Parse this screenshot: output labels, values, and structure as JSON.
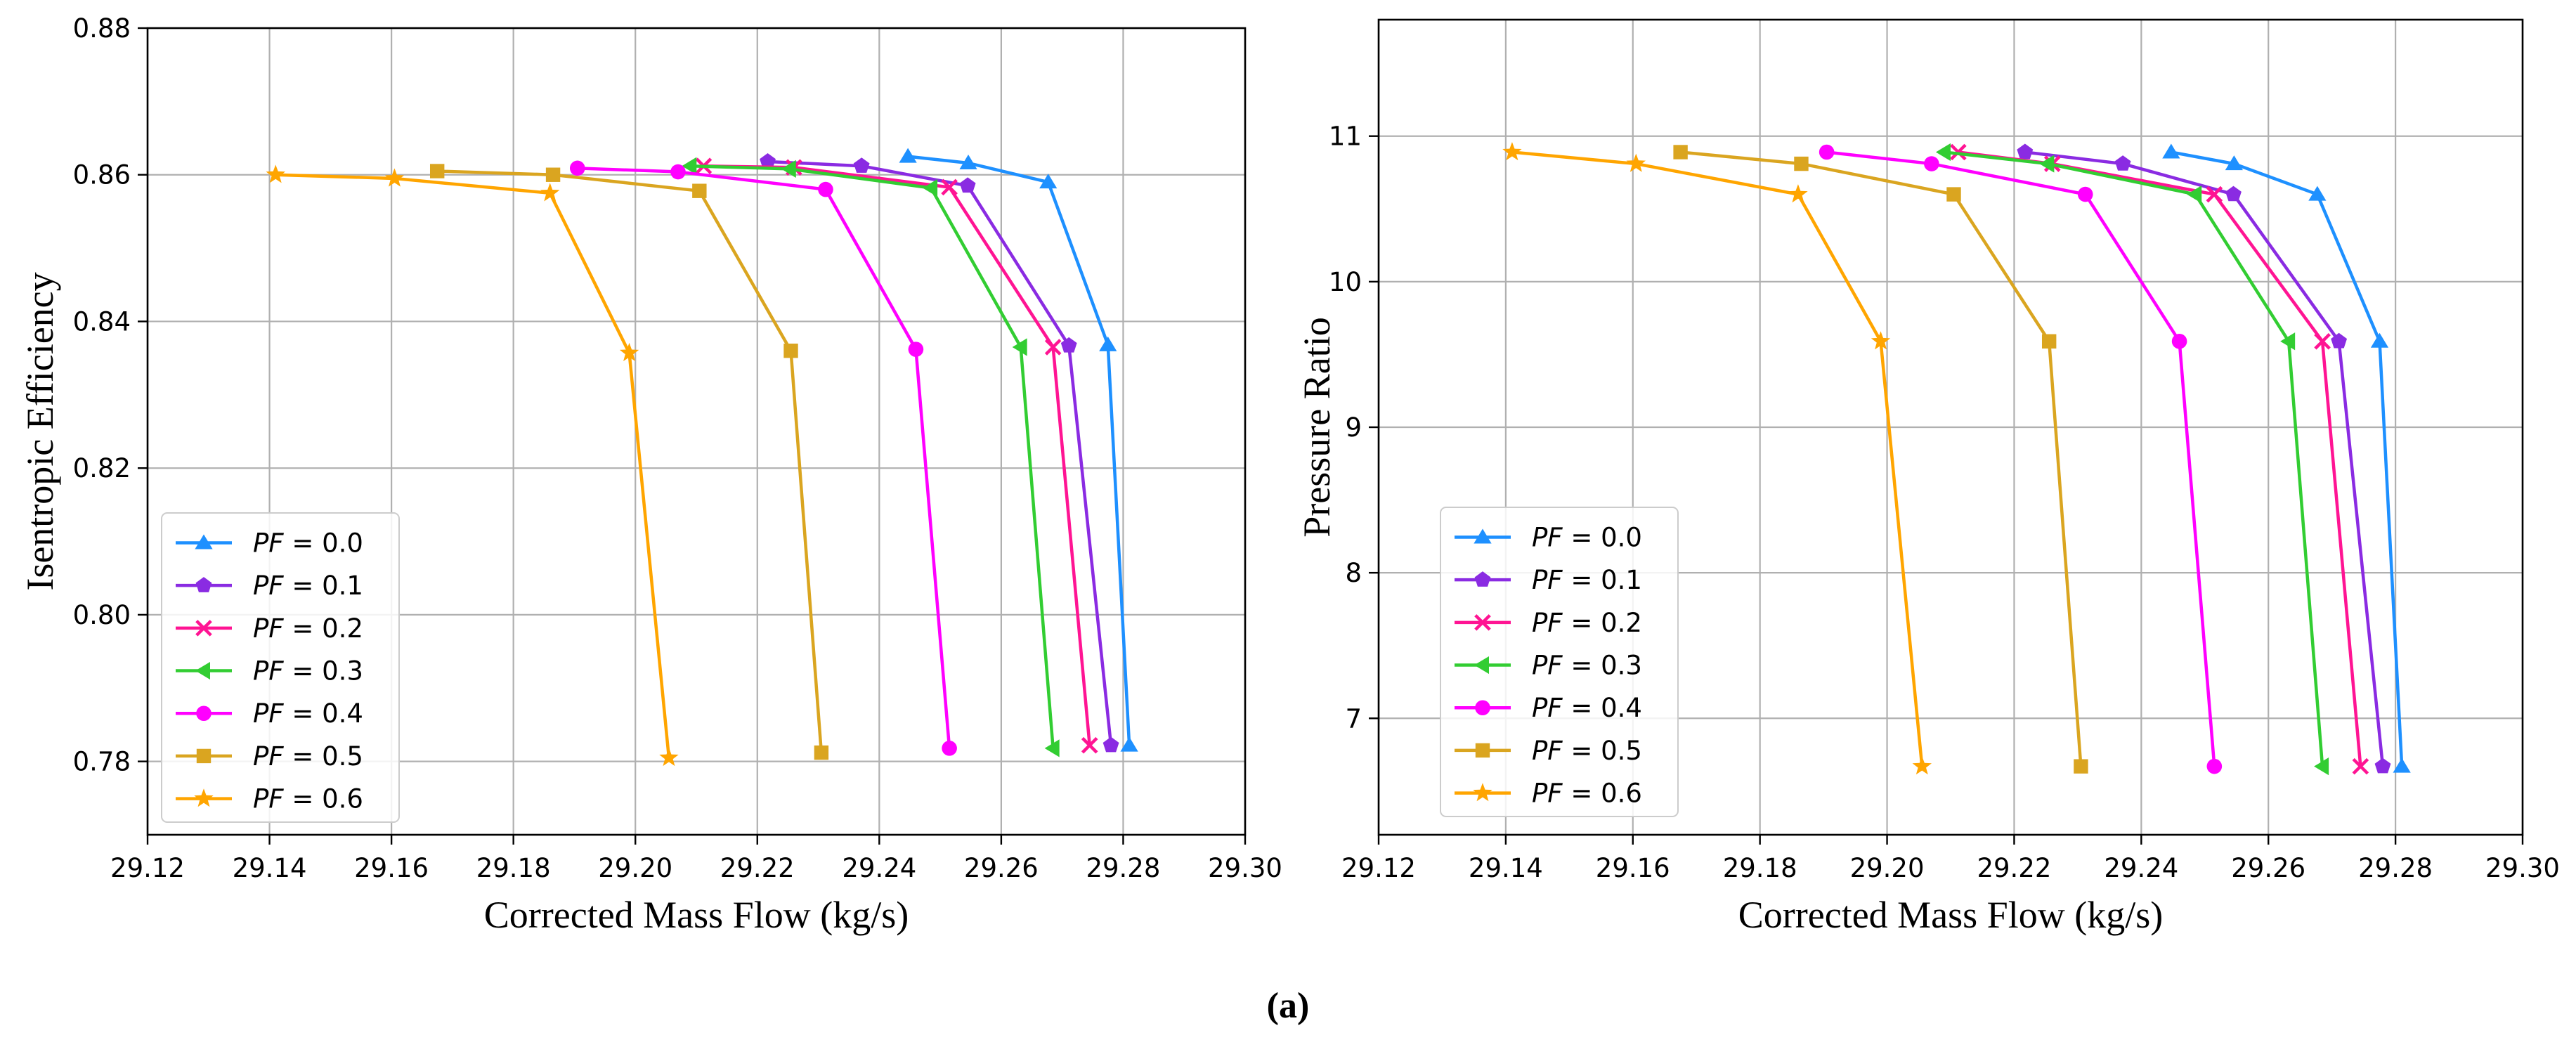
{
  "caption": "(a)",
  "series_style": [
    {
      "label_var": "PF",
      "value": "0.0",
      "color": "#1e90ff",
      "marker": "triangle-up"
    },
    {
      "label_var": "PF",
      "value": "0.1",
      "color": "#8a2be2",
      "marker": "pentagon"
    },
    {
      "label_var": "PF",
      "value": "0.2",
      "color": "#ff1493",
      "marker": "x"
    },
    {
      "label_var": "PF",
      "value": "0.3",
      "color": "#32cd32",
      "marker": "triangle-left"
    },
    {
      "label_var": "PF",
      "value": "0.4",
      "color": "#ff00ff",
      "marker": "circle"
    },
    {
      "label_var": "PF",
      "value": "0.5",
      "color": "#daa520",
      "marker": "square"
    },
    {
      "label_var": "PF",
      "value": "0.6",
      "color": "#ffa500",
      "marker": "star"
    }
  ],
  "chart_data": [
    {
      "type": "line",
      "xlabel": "Corrected Mass Flow (kg/s)",
      "ylabel": "Isentropic Efficiency",
      "xlim": [
        29.12,
        29.3
      ],
      "ylim": [
        0.77,
        0.88
      ],
      "xticks": [
        "29.12",
        "29.14",
        "29.16",
        "29.18",
        "29.20",
        "29.22",
        "29.24",
        "29.26",
        "29.28",
        "29.30"
      ],
      "yticks": [
        "0.78",
        "0.80",
        "0.82",
        "0.84",
        "0.86",
        "0.88"
      ],
      "ytick_values": [
        0.78,
        0.8,
        0.82,
        0.84,
        0.86,
        0.88
      ],
      "grid": true,
      "legend": "lower-left",
      "series": [
        {
          "name": "PF = 0.0",
          "x": [
            29.2447,
            29.2546,
            29.2677,
            29.2775,
            29.281
          ],
          "y": [
            0.8625,
            0.8616,
            0.859,
            0.8368,
            0.7822
          ]
        },
        {
          "name": "PF = 0.1",
          "x": [
            29.2217,
            29.2371,
            29.2545,
            29.2711,
            29.278
          ],
          "y": [
            0.8618,
            0.8612,
            0.8585,
            0.8367,
            0.7822
          ]
        },
        {
          "name": "PF = 0.2",
          "x": [
            29.2112,
            29.226,
            29.2515,
            29.2685,
            29.2745
          ],
          "y": [
            0.8612,
            0.861,
            0.8583,
            0.8365,
            0.7822
          ]
        },
        {
          "name": "PF = 0.3",
          "x": [
            29.209,
            29.2253,
            29.2485,
            29.2632,
            29.2685
          ],
          "y": [
            0.8612,
            0.8608,
            0.8582,
            0.8365,
            0.7818
          ]
        },
        {
          "name": "PF = 0.4",
          "x": [
            29.1905,
            29.207,
            29.2312,
            29.246,
            29.2515
          ],
          "y": [
            0.8609,
            0.8604,
            0.858,
            0.8362,
            0.7818
          ]
        },
        {
          "name": "PF = 0.5",
          "x": [
            29.1675,
            29.1865,
            29.2105,
            29.2255,
            29.2305
          ],
          "y": [
            0.8605,
            0.86,
            0.8578,
            0.836,
            0.7812
          ]
        },
        {
          "name": "PF = 0.6",
          "x": [
            29.141,
            29.1605,
            29.186,
            29.199,
            29.2055
          ],
          "y": [
            0.86,
            0.8595,
            0.8575,
            0.8357,
            0.7805
          ]
        }
      ]
    },
    {
      "type": "line",
      "xlabel": "Corrected Mass Flow (kg/s)",
      "ylabel": "Pressure Ratio",
      "xlim": [
        29.12,
        29.3
      ],
      "ylim": [
        6.2,
        11.8
      ],
      "xticks": [
        "29.12",
        "29.14",
        "29.16",
        "29.18",
        "29.20",
        "29.22",
        "29.24",
        "29.26",
        "29.28",
        "29.30"
      ],
      "yticks": [
        "7",
        "8",
        "9",
        "10",
        "11"
      ],
      "ytick_values": [
        7,
        8,
        9,
        10,
        11
      ],
      "grid": true,
      "legend": "lower-left",
      "series": [
        {
          "name": "PF = 0.0",
          "x": [
            29.2447,
            29.2546,
            29.2677,
            29.2775,
            29.281
          ],
          "y": [
            10.89,
            10.81,
            10.6,
            9.59,
            6.67
          ]
        },
        {
          "name": "PF = 0.1",
          "x": [
            29.2217,
            29.2371,
            29.2545,
            29.2711,
            29.278
          ],
          "y": [
            10.89,
            10.81,
            10.6,
            9.59,
            6.67
          ]
        },
        {
          "name": "PF = 0.2",
          "x": [
            29.2112,
            29.226,
            29.2515,
            29.2685,
            29.2745
          ],
          "y": [
            10.89,
            10.81,
            10.6,
            9.59,
            6.67
          ]
        },
        {
          "name": "PF = 0.3",
          "x": [
            29.209,
            29.2253,
            29.2485,
            29.2632,
            29.2685
          ],
          "y": [
            10.89,
            10.81,
            10.6,
            9.59,
            6.67
          ]
        },
        {
          "name": "PF = 0.4",
          "x": [
            29.1905,
            29.207,
            29.2312,
            29.246,
            29.2515
          ],
          "y": [
            10.89,
            10.81,
            10.6,
            9.59,
            6.67
          ]
        },
        {
          "name": "PF = 0.5",
          "x": [
            29.1675,
            29.1865,
            29.2105,
            29.2255,
            29.2305
          ],
          "y": [
            10.89,
            10.81,
            10.6,
            9.59,
            6.67
          ]
        },
        {
          "name": "PF = 0.6",
          "x": [
            29.141,
            29.1605,
            29.186,
            29.199,
            29.2055
          ],
          "y": [
            10.89,
            10.81,
            10.6,
            9.59,
            6.67
          ]
        }
      ]
    }
  ]
}
